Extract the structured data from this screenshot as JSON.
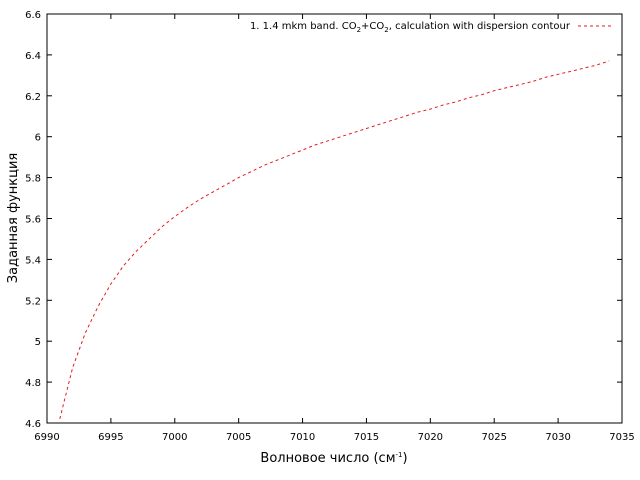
{
  "chart_data": {
    "type": "line",
    "title": "",
    "xlabel": "Волновое число (см",
    "xlabel_sup": "-1",
    "xlabel_tail": ")",
    "ylabel": "Заданная функция",
    "xlim": [
      6990,
      7035
    ],
    "ylim": [
      4.6,
      6.6
    ],
    "xticks": [
      6990,
      6995,
      7000,
      7005,
      7010,
      7015,
      7020,
      7025,
      7030,
      7035
    ],
    "xtick_labels": [
      "6990",
      "6995",
      "7000",
      "7005",
      "7010",
      "7015",
      "7020",
      "7025",
      "7030",
      "7035"
    ],
    "yticks": [
      4.6,
      4.8,
      5.0,
      5.2,
      5.4,
      5.6,
      5.8,
      6.0,
      6.2,
      6.4,
      6.6
    ],
    "ytick_labels": [
      "4.6",
      "4.8",
      "5",
      "5.2",
      "5.4",
      "5.6",
      "5.8",
      "6",
      "6.2",
      "6.4",
      "6.6"
    ],
    "grid": false,
    "legend_position": "top-right",
    "legend": {
      "prefix": "1. 1.4 mkm band. CO",
      "sub1": "2",
      "middle": "+CO",
      "sub2": "2",
      "suffix": ", calculation with dispersion contour"
    },
    "line_color": "#e41a1c",
    "line_style": "dashed",
    "series": [
      {
        "x": [
          6991,
          6992,
          6993,
          6994,
          6995,
          6996,
          6997,
          6998,
          6999,
          7000,
          7001,
          7002,
          7003,
          7004,
          7005,
          7006,
          7007,
          7008,
          7009,
          7010,
          7011,
          7012,
          7013,
          7014,
          7015,
          7016,
          7017,
          7018,
          7019,
          7020,
          7021,
          7022,
          7023,
          7024,
          7025,
          7026,
          7027,
          7028,
          7029,
          7030,
          7031,
          7032,
          7033,
          7034
        ],
        "y": [
          4.62,
          4.87,
          5.04,
          5.17,
          5.28,
          5.37,
          5.44,
          5.5,
          5.56,
          5.61,
          5.655,
          5.695,
          5.73,
          5.765,
          5.8,
          5.83,
          5.86,
          5.885,
          5.91,
          5.935,
          5.96,
          5.98,
          6.0,
          6.02,
          6.04,
          6.06,
          6.08,
          6.1,
          6.12,
          6.135,
          6.155,
          6.17,
          6.19,
          6.205,
          6.225,
          6.24,
          6.255,
          6.27,
          6.29,
          6.305,
          6.32,
          6.335,
          6.35,
          6.37
        ]
      }
    ]
  }
}
